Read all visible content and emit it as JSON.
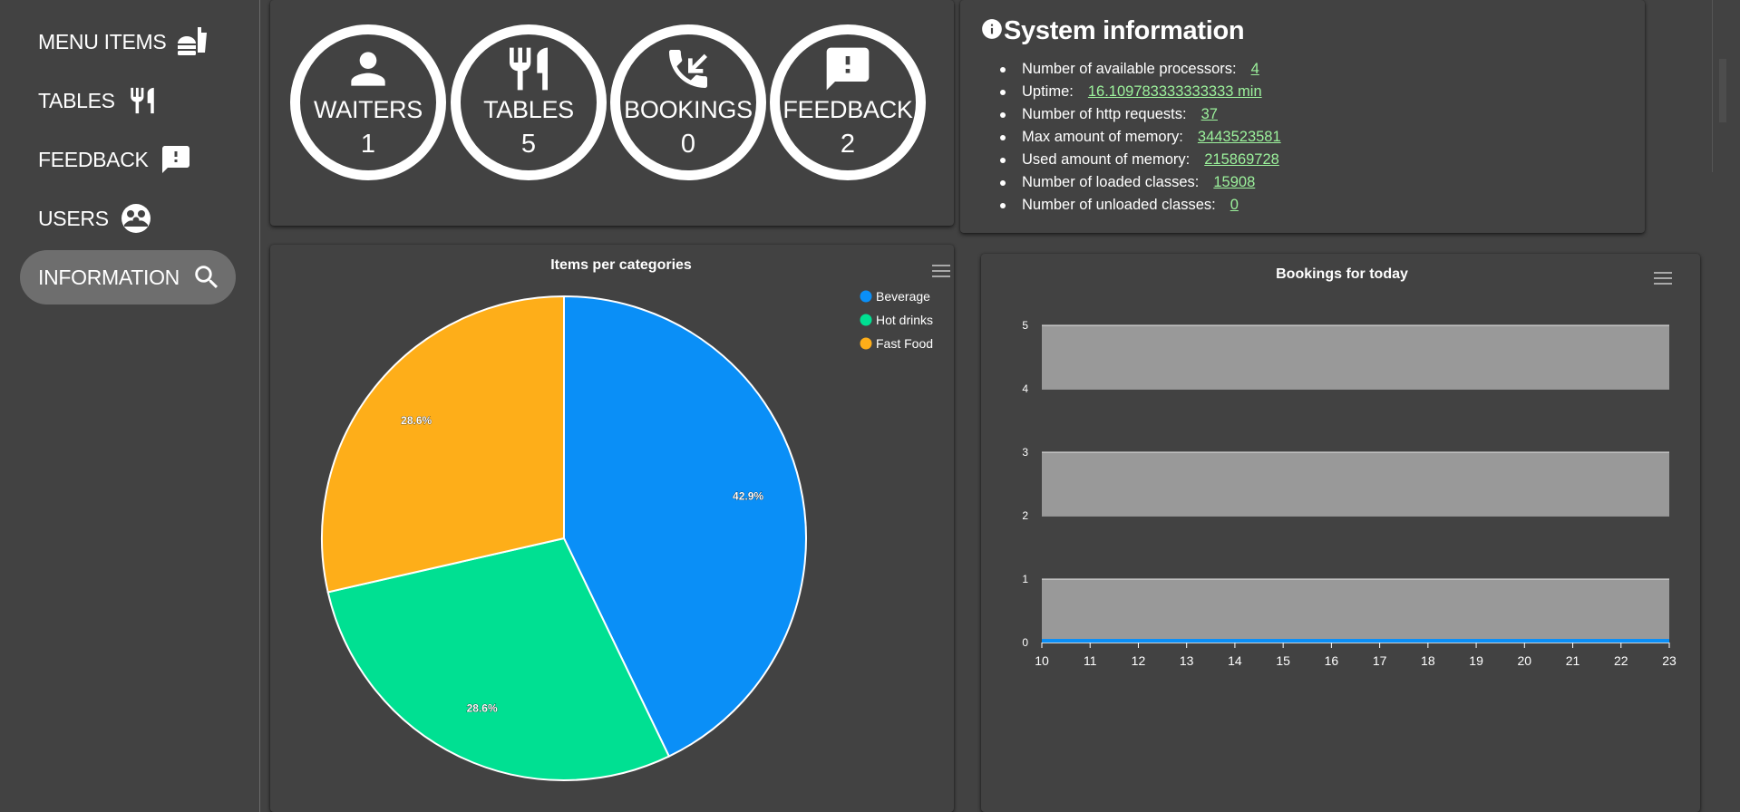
{
  "sidebar": {
    "items": [
      {
        "label": "MENU ITEMS",
        "icon": "fastfood-icon",
        "active": false
      },
      {
        "label": "TABLES",
        "icon": "restaurant-icon",
        "active": false
      },
      {
        "label": "FEEDBACK",
        "icon": "feedback-icon",
        "active": false
      },
      {
        "label": "USERS",
        "icon": "users-icon",
        "active": false
      },
      {
        "label": "INFORMATION",
        "icon": "search-icon",
        "active": true
      }
    ]
  },
  "stats": [
    {
      "label": "WAITERS",
      "value": "1",
      "icon": "person-icon"
    },
    {
      "label": "TABLES",
      "value": "5",
      "icon": "restaurant-icon"
    },
    {
      "label": "BOOKINGS",
      "value": "0",
      "icon": "phone-callback-icon"
    },
    {
      "label": "FEEDBACK",
      "value": "2",
      "icon": "feedback-icon"
    }
  ],
  "system_info": {
    "title": "System information",
    "items": [
      {
        "key": "Number of available processors:",
        "value": "4"
      },
      {
        "key": "Uptime:",
        "value": "16.109783333333333 min"
      },
      {
        "key": "Number of http requests:",
        "value": "37"
      },
      {
        "key": "Max amount of memory:",
        "value": "3443523581"
      },
      {
        "key": "Used amount of memory:",
        "value": "215869728"
      },
      {
        "key": "Number of loaded classes:",
        "value": "15908"
      },
      {
        "key": "Number of unloaded classes:",
        "value": "0"
      }
    ]
  },
  "chart_data": [
    {
      "type": "pie",
      "title": "Items per categories",
      "categories": [
        "Beverage",
        "Hot drinks",
        "Fast Food"
      ],
      "values": [
        42.9,
        28.6,
        28.6
      ],
      "data_labels": [
        "42.9%",
        "28.6%",
        "28.6%"
      ],
      "colors": [
        "#0a8ff7",
        "#00e092",
        "#feae19"
      ],
      "legend_placement": "top-right"
    },
    {
      "type": "bar",
      "title": "Bookings for today",
      "x": [
        "10",
        "11",
        "12",
        "13",
        "14",
        "15",
        "16",
        "17",
        "18",
        "19",
        "20",
        "21",
        "22",
        "23"
      ],
      "values": [
        0,
        0,
        0,
        0,
        0,
        0,
        0,
        0,
        0,
        0,
        0,
        0,
        0,
        0
      ],
      "ylim": [
        0,
        5
      ],
      "yticks": [
        "0",
        "1",
        "2",
        "3",
        "4",
        "5"
      ],
      "color": "#0a8ff7",
      "grid": "alternating-bands",
      "band_color": "#999999"
    }
  ]
}
